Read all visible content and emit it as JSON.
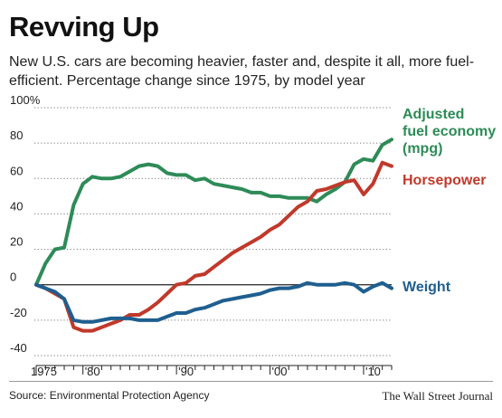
{
  "title": "Revving Up",
  "subtitle": "New U.S. cars are becoming heavier, faster and, despite it all, more fuel-efficient. Percentage change since 1975, by model year",
  "source": "Source: Environmental Protection Agency",
  "credit": "The Wall Street Journal",
  "chart_data": {
    "type": "line",
    "xlim": [
      1975,
      2013
    ],
    "ylim": [
      -40,
      100
    ],
    "yticks": [
      100,
      80,
      60,
      40,
      20,
      0,
      -20,
      -40
    ],
    "ytick_labels": [
      "100%",
      "80",
      "60",
      "40",
      "20",
      "0",
      "-20",
      "-40"
    ],
    "xticks": [
      1975,
      1980,
      1990,
      2000,
      2010
    ],
    "xtick_labels": [
      "1975",
      "'80",
      "'90",
      "'00",
      "'10"
    ],
    "grid": "horizontal dotted",
    "series": [
      {
        "name": "Adjusted fuel economy (mpg)",
        "color": "#2e8b57",
        "x": [
          1975,
          1976,
          1977,
          1978,
          1979,
          1980,
          1981,
          1982,
          1983,
          1984,
          1985,
          1986,
          1987,
          1988,
          1989,
          1990,
          1991,
          1992,
          1993,
          1994,
          1995,
          1996,
          1997,
          1998,
          1999,
          2000,
          2001,
          2002,
          2003,
          2004,
          2005,
          2006,
          2007,
          2008,
          2009,
          2010,
          2011,
          2012,
          2013
        ],
        "values": [
          0,
          12,
          20,
          21,
          45,
          57,
          61,
          60,
          60,
          61,
          64,
          67,
          68,
          67,
          63,
          62,
          62,
          59,
          60,
          57,
          56,
          55,
          54,
          52,
          52,
          50,
          50,
          49,
          49,
          49,
          47,
          51,
          54,
          58,
          68,
          71,
          70,
          79,
          82
        ]
      },
      {
        "name": "Horsepower",
        "color": "#c0392b",
        "x": [
          1975,
          1976,
          1977,
          1978,
          1979,
          1980,
          1981,
          1982,
          1983,
          1984,
          1985,
          1986,
          1987,
          1988,
          1989,
          1990,
          1991,
          1992,
          1993,
          1994,
          1995,
          1996,
          1997,
          1998,
          1999,
          2000,
          2001,
          2002,
          2003,
          2004,
          2005,
          2006,
          2007,
          2008,
          2009,
          2010,
          2011,
          2012,
          2013
        ],
        "values": [
          0,
          -2,
          -5,
          -8,
          -24,
          -26,
          -26,
          -24,
          -22,
          -20,
          -17,
          -17,
          -14,
          -10,
          -5,
          0,
          1,
          5,
          6,
          10,
          14,
          18,
          21,
          24,
          27,
          31,
          34,
          39,
          44,
          47,
          53,
          54,
          56,
          58,
          59,
          51,
          57,
          69,
          67
        ]
      },
      {
        "name": "Weight",
        "color": "#1f5f8f",
        "x": [
          1975,
          1976,
          1977,
          1978,
          1979,
          1980,
          1981,
          1982,
          1983,
          1984,
          1985,
          1986,
          1987,
          1988,
          1989,
          1990,
          1991,
          1992,
          1993,
          1994,
          1995,
          1996,
          1997,
          1998,
          1999,
          2000,
          2001,
          2002,
          2003,
          2004,
          2005,
          2006,
          2007,
          2008,
          2009,
          2010,
          2011,
          2012,
          2013
        ],
        "values": [
          0,
          -2,
          -4,
          -8,
          -20,
          -21,
          -21,
          -20,
          -19,
          -19,
          -19,
          -20,
          -20,
          -20,
          -18,
          -16,
          -16,
          -14,
          -13,
          -11,
          -9,
          -8,
          -7,
          -6,
          -5,
          -3,
          -2,
          -2,
          -1,
          1,
          0,
          0,
          0,
          1,
          0,
          -4,
          -1,
          1,
          -2
        ]
      }
    ]
  }
}
